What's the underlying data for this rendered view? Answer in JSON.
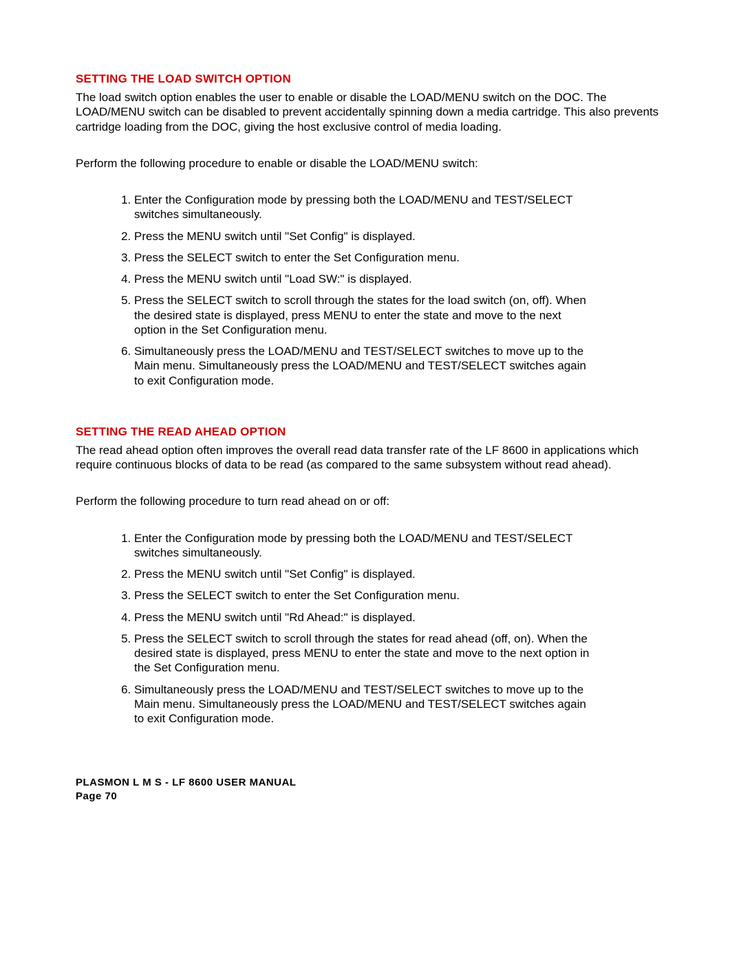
{
  "colors": {
    "heading": "#d40000",
    "text": "#000000",
    "background": "#ffffff"
  },
  "typography": {
    "body_fontsize_pt": 12,
    "heading_fontsize_pt": 12,
    "footer_fontsize_pt": 11,
    "font_family": "Arial"
  },
  "section1": {
    "heading": "SETTING THE LOAD SWITCH OPTION",
    "para1": "The load switch option enables the user to enable or disable the LOAD/MENU switch on the DOC. The LOAD/MENU switch can be disabled to prevent accidentally spinning down a media cartridge. This also prevents cartridge loading from the DOC, giving the host exclusive control of media loading.",
    "para2": "Perform the following procedure to enable or disable the LOAD/MENU switch:",
    "steps": [
      "Enter the Configuration mode by pressing both the LOAD/MENU and TEST/SELECT switches simultaneously.",
      "Press the MENU switch until \"Set Config\" is displayed.",
      "Press the SELECT switch to enter the Set Configuration menu.",
      "Press the MENU switch until \"Load SW:\" is displayed.",
      "Press the SELECT switch to scroll through the states for the load switch (on, off). When the desired state is displayed, press MENU to enter the state and move to the next option in the Set Configuration menu.",
      "Simultaneously press the LOAD/MENU and TEST/SELECT switches to move up to the Main menu. Simultaneously press the LOAD/MENU and TEST/SELECT switches again to exit Configuration mode."
    ]
  },
  "section2": {
    "heading": "SETTING THE READ AHEAD OPTION",
    "para1": "The read ahead option often improves the overall read data transfer rate of the LF 8600 in applications which require continuous blocks of data to be read (as compared to the same subsystem without read ahead).",
    "para2": "Perform the following procedure to turn read ahead on or off:",
    "steps": [
      "Enter the Configuration mode by pressing both the LOAD/MENU and TEST/SELECT switches simultaneously.",
      "Press the MENU switch until \"Set Config\" is displayed.",
      "Press the SELECT switch to enter the Set Configuration menu.",
      "Press the MENU switch until \"Rd Ahead:\" is displayed.",
      "Press the SELECT switch to scroll through the states for read ahead (off, on). When the desired state is displayed, press MENU to enter the state and move to the next option in the Set Configuration menu.",
      "Simultaneously press the LOAD/MENU and TEST/SELECT switches to move up to the Main menu. Simultaneously press the LOAD/MENU and TEST/SELECT switches again to exit Configuration mode."
    ]
  },
  "footer": {
    "line1": "PLASMON  L M S  -  LF 8600  USER MANUAL",
    "line2": "Page 70"
  }
}
